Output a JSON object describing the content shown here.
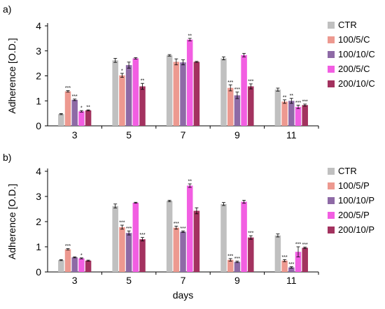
{
  "chart_data": [
    {
      "type": "bar",
      "panel_label": "a)",
      "categories": [
        "3",
        "5",
        "7",
        "9",
        "11"
      ],
      "ylabel": "Adherence [O.D.]",
      "xlabel": "",
      "ylim": [
        0,
        4
      ],
      "yticks": [
        "0",
        "1",
        "2",
        "3",
        "4"
      ],
      "legend_position": "right",
      "series": [
        {
          "name": "CTR",
          "color": "#c0c0c0",
          "values": [
            0.47,
            2.62,
            2.82,
            2.7,
            1.45
          ],
          "errors": [
            0.02,
            0.08,
            0.03,
            0.06,
            0.06
          ],
          "sig": [
            "",
            "",
            "",
            "",
            ""
          ]
        },
        {
          "name": "100/5/C",
          "color": "#ed9990",
          "values": [
            1.38,
            2.02,
            2.56,
            1.52,
            0.97
          ],
          "errors": [
            0.03,
            0.08,
            0.12,
            0.12,
            0.07
          ],
          "sig": [
            "***",
            "*",
            "",
            "***",
            "**"
          ]
        },
        {
          "name": "100/10/C",
          "color": "#8e6aa6",
          "values": [
            1.04,
            2.43,
            2.54,
            1.22,
            1.0
          ],
          "errors": [
            0.03,
            0.12,
            0.1,
            0.13,
            0.1
          ],
          "sig": [
            "***",
            "",
            "",
            "***",
            "**"
          ]
        },
        {
          "name": "200/5/C",
          "color": "#f25ee2",
          "values": [
            0.58,
            2.7,
            3.45,
            2.83,
            0.76
          ],
          "errors": [
            0.03,
            0.03,
            0.05,
            0.07,
            0.07
          ],
          "sig": [
            "*",
            "",
            "**",
            "",
            "***"
          ]
        },
        {
          "name": "200/10/C",
          "color": "#a3325f",
          "values": [
            0.62,
            1.58,
            2.56,
            1.58,
            0.83
          ],
          "errors": [
            0.02,
            0.12,
            0.02,
            0.1,
            0.04
          ],
          "sig": [
            "**",
            "**",
            "",
            "***",
            "***"
          ]
        }
      ]
    },
    {
      "type": "bar",
      "panel_label": "b)",
      "categories": [
        "3",
        "5",
        "7",
        "9",
        "11"
      ],
      "ylabel": "Adherence [O.D.]",
      "xlabel": "days",
      "ylim": [
        0,
        4
      ],
      "yticks": [
        "0",
        "1",
        "2",
        "3",
        "4"
      ],
      "legend_position": "right",
      "series": [
        {
          "name": "CTR",
          "color": "#c0c0c0",
          "values": [
            0.47,
            2.62,
            2.82,
            2.7,
            1.45
          ],
          "errors": [
            0.02,
            0.08,
            0.03,
            0.06,
            0.06
          ],
          "sig": [
            "",
            "",
            "",
            "",
            ""
          ]
        },
        {
          "name": "100/5/P",
          "color": "#ed9990",
          "values": [
            0.9,
            1.78,
            1.76,
            0.48,
            0.45
          ],
          "errors": [
            0.03,
            0.08,
            0.06,
            0.05,
            0.04
          ],
          "sig": [
            "***",
            "***",
            "***",
            "***",
            "***"
          ]
        },
        {
          "name": "100/10/P",
          "color": "#8e6aa6",
          "values": [
            0.58,
            1.55,
            1.6,
            0.4,
            0.18
          ],
          "errors": [
            0.02,
            0.08,
            0.03,
            0.03,
            0.03
          ],
          "sig": [
            "",
            "***",
            "***",
            "***",
            "***"
          ]
        },
        {
          "name": "200/5/P",
          "color": "#f25ee2",
          "values": [
            0.54,
            2.75,
            3.43,
            2.79,
            0.8
          ],
          "errors": [
            0.02,
            0.02,
            0.07,
            0.06,
            0.2
          ],
          "sig": [
            "*",
            "",
            "**",
            "",
            "***"
          ]
        },
        {
          "name": "200/10/P",
          "color": "#a3325f",
          "values": [
            0.45,
            1.3,
            2.43,
            1.37,
            0.96
          ],
          "errors": [
            0.02,
            0.07,
            0.12,
            0.07,
            0.03
          ],
          "sig": [
            "",
            "***",
            "",
            "***",
            "***"
          ]
        }
      ]
    }
  ]
}
